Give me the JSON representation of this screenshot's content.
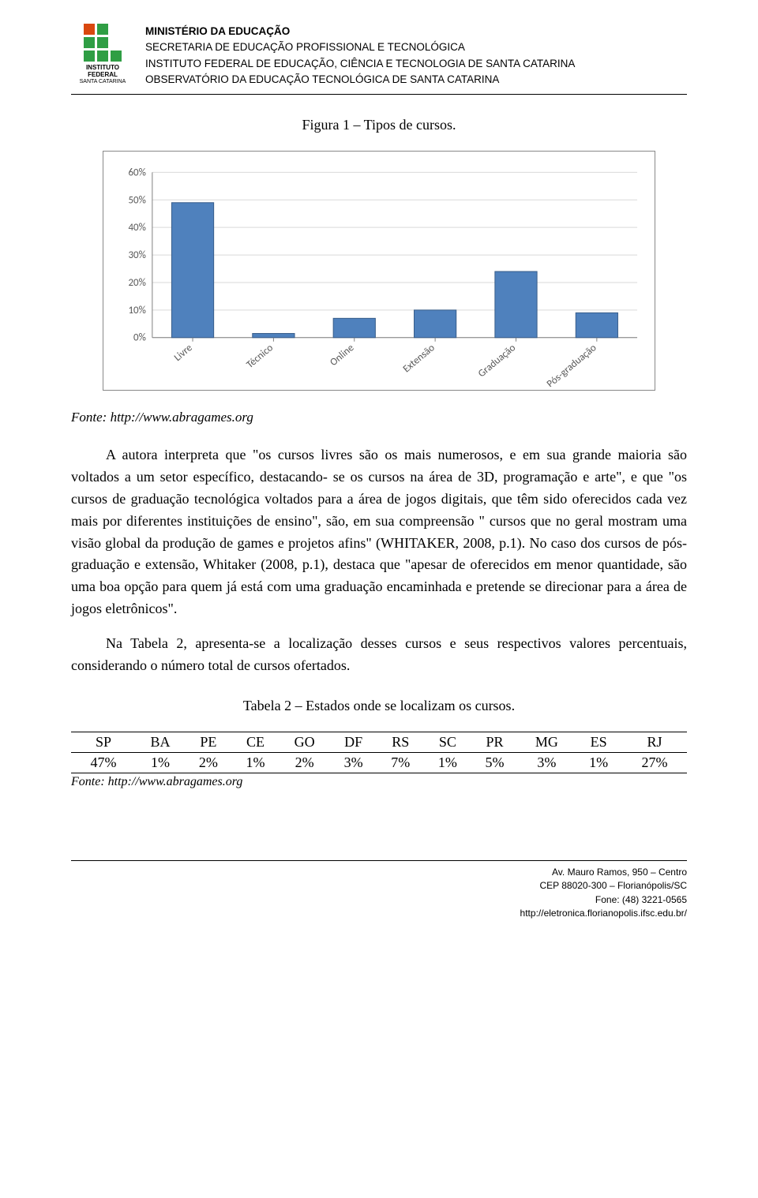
{
  "header": {
    "lines": [
      "MINISTÉRIO DA EDUCAÇÃO",
      "SECRETARIA DE EDUCAÇÃO PROFISSIONAL E TECNOLÓGICA",
      "INSTITUTO FEDERAL DE EDUCAÇÃO, CIÊNCIA E TECNOLOGIA DE SANTA CATARINA",
      "OBSERVATÓRIO DA EDUCAÇÃO TECNOLÓGICA DE SANTA CATARINA"
    ],
    "logo_top": "INSTITUTO FEDERAL",
    "logo_bottom": "SANTA CATARINA"
  },
  "figure": {
    "caption": "Figura 1 – Tipos de cursos.",
    "source": "Fonte: http://www.abragames.org"
  },
  "chart": {
    "type": "bar",
    "categories": [
      "Livre",
      "Técnico",
      "Online",
      "Extensão",
      "Graduação",
      "Pós-graduação"
    ],
    "values": [
      49,
      1.5,
      7,
      10,
      24,
      9
    ],
    "bar_color": "#4f81bd",
    "bar_border_color": "#385d8a",
    "grid_color": "#d9d9d9",
    "axis_color": "#808080",
    "ylim": [
      0,
      60
    ],
    "ytick_step": 10,
    "ytick_suffix": "%",
    "label_color": "#595959",
    "label_fontsize": 13,
    "bar_width_ratio": 0.52,
    "background_color": "#ffffff",
    "rotate_xlabels_deg": -40
  },
  "paragraphs": {
    "p1": "A autora interpreta que \"os cursos livres são os mais numerosos, e em sua grande maioria são voltados a um setor específico, destacando- se os cursos na área de 3D, programação e arte\", e que \"os cursos de graduação tecnológica voltados para a área de jogos digitais, que têm sido oferecidos cada vez mais por diferentes instituições de ensino\", são, em sua compreensão \" cursos que no geral mostram uma visão global da produção de games e projetos afins\" (WHITAKER, 2008, p.1). No caso dos cursos de pós-graduação e extensão, Whitaker (2008, p.1), destaca que \"apesar de oferecidos em menor quantidade, são uma boa opção para quem já está com uma graduação encaminhada e pretende se direcionar para a área de jogos eletrônicos\".",
    "p2": "Na Tabela 2, apresenta-se a localização desses cursos e seus respectivos valores percentuais, considerando o número total de cursos ofertados."
  },
  "table": {
    "caption": "Tabela 2 – Estados onde se localizam os cursos.",
    "columns": [
      "SP",
      "BA",
      "PE",
      "CE",
      "GO",
      "DF",
      "RS",
      "SC",
      "PR",
      "MG",
      "ES",
      "RJ"
    ],
    "row": [
      "47%",
      "1%",
      "2%",
      "1%",
      "2%",
      "3%",
      "7%",
      "1%",
      "5%",
      "3%",
      "1%",
      "27%"
    ],
    "source": "Fonte: http://www.abragames.org"
  },
  "footer": {
    "lines": [
      "Av. Mauro Ramos, 950 – Centro",
      "CEP 88020-300 – Florianópolis/SC",
      "Fone: (48) 3221-0565",
      "http://eletronica.florianopolis.ifsc.edu.br/"
    ]
  }
}
